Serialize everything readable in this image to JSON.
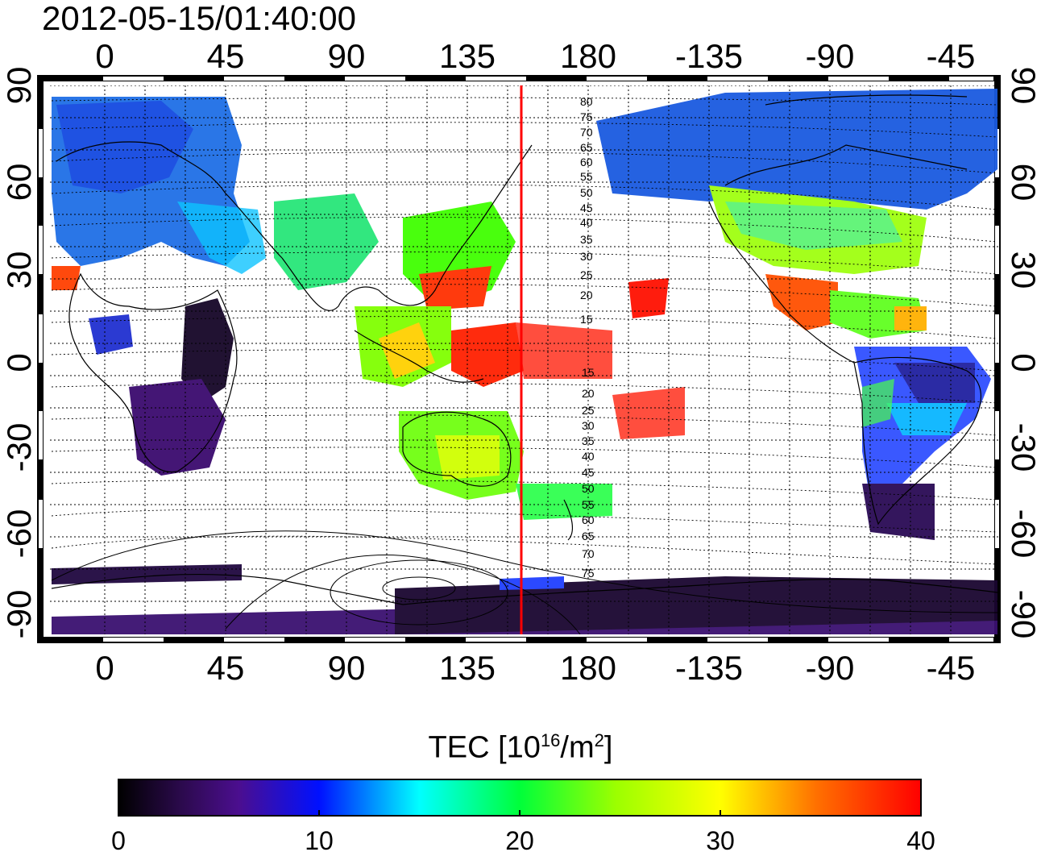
{
  "timestamp": "2012-05-15/01:40:00",
  "colorbar": {
    "title_prefix": "TEC  [10",
    "title_exp1": "16",
    "title_mid": "/m",
    "title_exp2": "2",
    "title_suffix": "]",
    "tick_labels": [
      "0",
      "10",
      "20",
      "30",
      "40"
    ],
    "range": [
      0,
      40
    ]
  },
  "axes": {
    "lon_tick_labels": [
      "0",
      "45",
      "90",
      "135",
      "180",
      "-135",
      "-90",
      "-45"
    ],
    "lat_tick_labels": [
      "90",
      "60",
      "30",
      "0",
      "-30",
      "-60",
      "-90"
    ]
  },
  "contour_labels": {
    "north": [
      "80",
      "75",
      "70",
      "65",
      "60",
      "55",
      "50",
      "45",
      "40",
      "35",
      "30",
      "25",
      "20",
      "15"
    ],
    "south": [
      "15",
      "20",
      "25",
      "30",
      "35",
      "40",
      "45",
      "50",
      "55",
      "60",
      "65",
      "70",
      "75"
    ]
  },
  "colors": {
    "marker_line": "#ff0000",
    "scale": [
      "#000000",
      "#3a0a6e",
      "#0000ff",
      "#00ffff",
      "#00ff00",
      "#ffff00",
      "#ff0000"
    ]
  }
}
